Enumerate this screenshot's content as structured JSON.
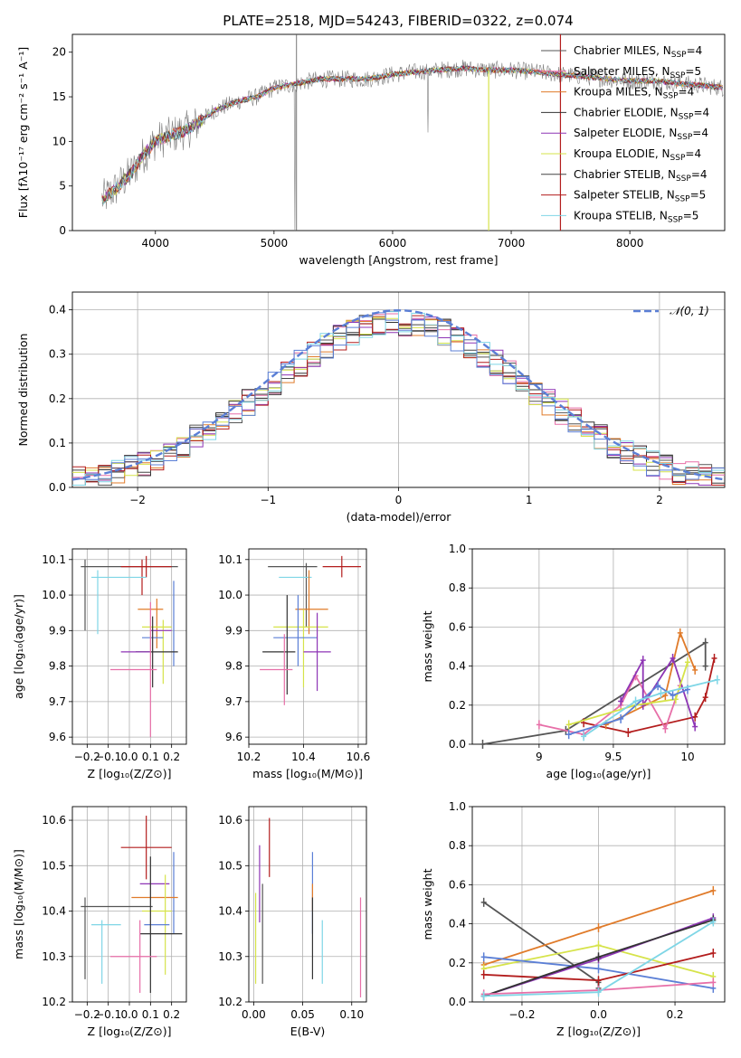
{
  "figure": {
    "title": "PLATE=2518, MJD=54243, FIBERID=0322, z=0.074"
  },
  "chart_data": [
    {
      "id": "spectrum",
      "type": "line",
      "xlabel": "wavelength [Angstrom, rest frame]",
      "ylabel": "Flux [fλ10⁻¹⁷ erg cm⁻² s⁻¹ A⁻¹]",
      "xlim": [
        3300,
        8800
      ],
      "ylim": [
        0,
        22
      ],
      "xticks": [
        4000,
        5000,
        6000,
        7000,
        8000
      ],
      "yticks": [
        0,
        5,
        10,
        15,
        20
      ],
      "grid": false,
      "legend_position": "top-right",
      "continuum": {
        "x": [
          3550,
          3650,
          3800,
          3900,
          4000,
          4100,
          4300,
          4500,
          4700,
          4860,
          5000,
          5200,
          5400,
          5600,
          5800,
          6000,
          6200,
          6400,
          6600,
          6800,
          7000,
          7200,
          7400,
          7600,
          7800,
          8000,
          8200,
          8400,
          8600,
          8790
        ],
        "y": [
          3.5,
          4.5,
          6.5,
          8.5,
          10.0,
          10.5,
          11.5,
          13.5,
          14.5,
          15.0,
          16.0,
          16.5,
          17.0,
          17.0,
          17.0,
          17.5,
          17.8,
          18.0,
          18.2,
          18.0,
          18.0,
          17.8,
          17.5,
          17.3,
          17.0,
          16.8,
          16.8,
          16.5,
          16.3,
          16.0
        ]
      },
      "series": [
        {
          "name": "Chabrier MILES, N$_{SSP}$=4",
          "label_main": "Chabrier MILES, N",
          "label_sub": "SSP",
          "label_tail": "=4",
          "color": "#555555"
        },
        {
          "name": "Salpeter MILES, N$_{SSP}$=5",
          "label_main": "Salpeter MILES, N",
          "label_sub": "SSP",
          "label_tail": "=5",
          "color": "#e76fa8"
        },
        {
          "name": "Kroupa MILES, N$_{SSP}$=4",
          "label_main": "Kroupa MILES, N",
          "label_sub": "SSP",
          "label_tail": "=4",
          "color": "#e07b2a"
        },
        {
          "name": "Chabrier ELODIE, N$_{SSP}$=4",
          "label_main": "Chabrier ELODIE, N",
          "label_sub": "SSP",
          "label_tail": "=4",
          "color": "#333333"
        },
        {
          "name": "Salpeter ELODIE, N$_{SSP}$=4",
          "label_main": "Salpeter ELODIE, N",
          "label_sub": "SSP",
          "label_tail": "=4",
          "color": "#8e35b5"
        },
        {
          "name": "Kroupa ELODIE, N$_{SSP}$=4",
          "label_main": "Kroupa ELODIE, N",
          "label_sub": "SSP",
          "label_tail": "=4",
          "color": "#d6e34a"
        },
        {
          "name": "Chabrier STELIB, N$_{SSP}$=4",
          "label_main": "Chabrier STELIB, N",
          "label_sub": "SSP",
          "label_tail": "=4",
          "color": "#444444"
        },
        {
          "name": "Salpeter STELIB, N$_{SSP}$=5",
          "label_main": "Salpeter STELIB, N",
          "label_sub": "SSP",
          "label_tail": "=5",
          "color": "#b31d1d"
        },
        {
          "name": "Kroupa STELIB, N$_{SSP}$=5",
          "label_main": "Kroupa STELIB, N",
          "label_sub": "SSP",
          "label_tail": "=5",
          "color": "#7fd6e6"
        }
      ]
    },
    {
      "id": "residuals",
      "type": "line",
      "xlabel": "(data-model)/error",
      "ylabel": "Normed distribution",
      "xlim": [
        -2.5,
        2.5
      ],
      "ylim": [
        0,
        0.44
      ],
      "xticks": [
        -2,
        -1,
        0,
        1,
        2
      ],
      "xtick_labels": [
        "−2",
        "−1",
        "0",
        "1",
        "2"
      ],
      "yticks": [
        0.0,
        0.1,
        0.2,
        0.3,
        0.4
      ],
      "grid": true,
      "legend_position": "top-right",
      "reference_curve": {
        "name": "$\\mathcal{N}(0,1)$",
        "label": "𝒩(0, 1)",
        "color": "#5b7fd6",
        "style": "dashed"
      },
      "bin_edges_start": -2.5,
      "bin_width": 0.1,
      "histogram_colors": [
        "#555555",
        "#e76fa8",
        "#e07b2a",
        "#333333",
        "#8e35b5",
        "#d6e34a",
        "#444444",
        "#b31d1d",
        "#7fd6e6",
        "#5b7fd6"
      ]
    },
    {
      "id": "age-vs-Z",
      "type": "scatter",
      "xlabel": "Z [log₁₀(Z/Z⊙)]",
      "ylabel": "age  [log₁₀(age/yr)]",
      "xlim": [
        -0.27,
        0.27
      ],
      "ylim": [
        9.58,
        10.13
      ],
      "xticks": [
        -0.2,
        -0.1,
        0.0,
        0.1,
        0.2
      ],
      "xtick_labels": [
        "−0.2",
        "−0.1",
        "0.0",
        "0.1",
        "0.2"
      ],
      "yticks": [
        9.6,
        9.7,
        9.8,
        9.9,
        10.0,
        10.1
      ],
      "grid": true,
      "points": [
        {
          "x": 0.0,
          "xerr": 0.23,
          "y": 10.08,
          "yerr": 0.0,
          "color": "#555555"
        },
        {
          "x": -0.21,
          "xerr": 0.0,
          "y": 10.0,
          "yerr": 0.1,
          "color": "#555555"
        },
        {
          "x": 0.08,
          "xerr": 0.12,
          "y": 10.08,
          "yerr": 0.03,
          "color": "#b31d1d"
        },
        {
          "x": 0.06,
          "xerr": 0.0,
          "y": 10.05,
          "yerr": 0.05,
          "color": "#b31d1d"
        },
        {
          "x": -0.05,
          "xerr": 0.13,
          "y": 10.05,
          "yerr": 0.0,
          "color": "#7fd6e6"
        },
        {
          "x": -0.15,
          "xerr": 0.0,
          "y": 9.98,
          "yerr": 0.09,
          "color": "#7fd6e6"
        },
        {
          "x": 0.1,
          "xerr": 0.06,
          "y": 9.96,
          "yerr": 0.0,
          "color": "#e07b2a"
        },
        {
          "x": 0.13,
          "xerr": 0.0,
          "y": 9.92,
          "yerr": 0.07,
          "color": "#e07b2a"
        },
        {
          "x": 0.13,
          "xerr": 0.07,
          "y": 9.91,
          "yerr": 0.0,
          "color": "#d6e34a"
        },
        {
          "x": 0.16,
          "xerr": 0.0,
          "y": 9.84,
          "yerr": 0.09,
          "color": "#d6e34a"
        },
        {
          "x": 0.15,
          "xerr": 0.05,
          "y": 9.9,
          "yerr": 0.0,
          "color": "#8e35b5"
        },
        {
          "x": 0.11,
          "xerr": 0.05,
          "y": 9.88,
          "yerr": 0.0,
          "color": "#5b7fd6"
        },
        {
          "x": 0.21,
          "xerr": 0.0,
          "y": 9.92,
          "yerr": 0.12,
          "color": "#5b7fd6"
        },
        {
          "x": 0.13,
          "xerr": 0.1,
          "y": 9.84,
          "yerr": 0.0,
          "color": "#333333"
        },
        {
          "x": 0.11,
          "xerr": 0.0,
          "y": 9.84,
          "yerr": 0.1,
          "color": "#333333"
        },
        {
          "x": 0.03,
          "xerr": 0.07,
          "y": 9.84,
          "yerr": 0.0,
          "color": "#8e35b5"
        },
        {
          "x": 0.02,
          "xerr": 0.11,
          "y": 9.79,
          "yerr": 0.0,
          "color": "#e76fa8"
        },
        {
          "x": 0.1,
          "xerr": 0.0,
          "y": 9.79,
          "yerr": 0.19,
          "color": "#e76fa8"
        }
      ]
    },
    {
      "id": "age-vs-mass",
      "type": "scatter",
      "xlabel": "mass [log₁₀(M/M⊙)]",
      "ylabel": "",
      "xlim": [
        10.2,
        10.63
      ],
      "ylim": [
        9.58,
        10.13
      ],
      "xticks": [
        10.2,
        10.4,
        10.6
      ],
      "yticks": [
        9.6,
        9.7,
        9.8,
        9.9,
        10.0,
        10.1
      ],
      "grid": true,
      "points": [
        {
          "x": 10.54,
          "xerr": 0.07,
          "y": 10.08,
          "yerr": 0.03,
          "color": "#b31d1d"
        },
        {
          "x": 10.36,
          "xerr": 0.09,
          "y": 10.08,
          "yerr": 0.0,
          "color": "#555555"
        },
        {
          "x": 10.41,
          "xerr": 0.0,
          "y": 10.0,
          "yerr": 0.09,
          "color": "#555555"
        },
        {
          "x": 10.37,
          "xerr": 0.06,
          "y": 10.05,
          "yerr": 0.0,
          "color": "#7fd6e6"
        },
        {
          "x": 10.42,
          "xerr": 0.0,
          "y": 9.98,
          "yerr": 0.09,
          "color": "#e07b2a"
        },
        {
          "x": 10.43,
          "xerr": 0.06,
          "y": 9.96,
          "yerr": 0.0,
          "color": "#e07b2a"
        },
        {
          "x": 10.39,
          "xerr": 0.1,
          "y": 9.91,
          "yerr": 0.0,
          "color": "#d6e34a"
        },
        {
          "x": 10.4,
          "xerr": 0.0,
          "y": 9.85,
          "yerr": 0.11,
          "color": "#d6e34a"
        },
        {
          "x": 10.37,
          "xerr": 0.08,
          "y": 9.88,
          "yerr": 0.0,
          "color": "#5b7fd6"
        },
        {
          "x": 10.38,
          "xerr": 0.0,
          "y": 9.9,
          "yerr": 0.1,
          "color": "#5b7fd6"
        },
        {
          "x": 10.34,
          "xerr": 0.0,
          "y": 9.86,
          "yerr": 0.14,
          "color": "#333333"
        },
        {
          "x": 10.31,
          "xerr": 0.06,
          "y": 9.84,
          "yerr": 0.0,
          "color": "#333333"
        },
        {
          "x": 10.45,
          "xerr": 0.05,
          "y": 9.84,
          "yerr": 0.0,
          "color": "#8e35b5"
        },
        {
          "x": 10.45,
          "xerr": 0.0,
          "y": 9.84,
          "yerr": 0.11,
          "color": "#8e35b5"
        },
        {
          "x": 10.3,
          "xerr": 0.06,
          "y": 9.79,
          "yerr": 0.0,
          "color": "#e76fa8"
        },
        {
          "x": 10.33,
          "xerr": 0.0,
          "y": 9.79,
          "yerr": 0.1,
          "color": "#e76fa8"
        }
      ]
    },
    {
      "id": "weight-vs-age",
      "type": "line",
      "xlabel": "age  [log₁₀(age/yr)]",
      "ylabel": "mass weight",
      "xlim": [
        8.55,
        10.25
      ],
      "ylim": [
        0,
        1
      ],
      "xticks": [
        9.0,
        9.5,
        10.0
      ],
      "yticks": [
        0.0,
        0.2,
        0.4,
        0.6,
        0.8,
        1.0
      ],
      "grid": true,
      "series": [
        {
          "color": "#555555",
          "x": [
            8.62,
            9.18,
            10.12,
            10.12
          ],
          "y": [
            0.0,
            0.07,
            0.52,
            0.4
          ]
        },
        {
          "color": "#b31d1d",
          "x": [
            9.3,
            9.6,
            10.05,
            10.12,
            10.18
          ],
          "y": [
            0.11,
            0.06,
            0.14,
            0.24,
            0.44
          ]
        },
        {
          "color": "#e07b2a",
          "x": [
            9.45,
            9.85,
            9.95,
            10.05
          ],
          "y": [
            0.1,
            0.25,
            0.57,
            0.38
          ]
        },
        {
          "color": "#e76fa8",
          "x": [
            9.0,
            9.3,
            9.55,
            9.65,
            9.85,
            9.95
          ],
          "y": [
            0.1,
            0.05,
            0.2,
            0.35,
            0.08,
            0.3
          ]
        },
        {
          "color": "#8e35b5",
          "x": [
            9.55,
            9.7,
            9.7,
            9.9,
            10.05
          ],
          "y": [
            0.22,
            0.43,
            0.2,
            0.44,
            0.09
          ]
        },
        {
          "color": "#d6e34a",
          "x": [
            9.2,
            9.65,
            9.92,
            10.0
          ],
          "y": [
            0.1,
            0.2,
            0.23,
            0.42
          ]
        },
        {
          "color": "#5b7fd6",
          "x": [
            9.2,
            9.55,
            9.8,
            9.9,
            10.0
          ],
          "y": [
            0.05,
            0.13,
            0.3,
            0.25,
            0.28
          ]
        },
        {
          "color": "#7fd6e6",
          "x": [
            9.3,
            9.65,
            9.82,
            10.2
          ],
          "y": [
            0.04,
            0.22,
            0.26,
            0.33
          ]
        }
      ]
    },
    {
      "id": "mass-vs-Z",
      "type": "scatter",
      "xlabel": "Z [log₁₀(Z/Z⊙)]",
      "ylabel": "mass [log₁₀(M/M⊙)]",
      "xlim": [
        -0.27,
        0.27
      ],
      "ylim": [
        10.2,
        10.63
      ],
      "xticks": [
        -0.2,
        -0.1,
        0.0,
        0.1,
        0.2
      ],
      "xtick_labels": [
        "−0.2",
        "−0.1",
        "0.0",
        "0.1",
        "0.2"
      ],
      "yticks": [
        10.2,
        10.3,
        10.4,
        10.5,
        10.6
      ],
      "grid": true,
      "points": [
        {
          "x": 0.08,
          "xerr": 0.12,
          "y": 10.54,
          "yerr": 0.07,
          "color": "#b31d1d"
        },
        {
          "x": 0.21,
          "xerr": 0.0,
          "y": 10.44,
          "yerr": 0.09,
          "color": "#5b7fd6"
        },
        {
          "x": 0.12,
          "xerr": 0.07,
          "y": 10.46,
          "yerr": 0.0,
          "color": "#8e35b5"
        },
        {
          "x": 0.12,
          "xerr": 0.11,
          "y": 10.43,
          "yerr": 0.0,
          "color": "#e07b2a"
        },
        {
          "x": 0.17,
          "xerr": 0.0,
          "y": 10.37,
          "yerr": 0.11,
          "color": "#d6e34a"
        },
        {
          "x": -0.06,
          "xerr": 0.17,
          "y": 10.41,
          "yerr": 0.0,
          "color": "#555555"
        },
        {
          "x": -0.21,
          "xerr": 0.0,
          "y": 10.34,
          "yerr": 0.09,
          "color": "#555555"
        },
        {
          "x": 0.13,
          "xerr": 0.07,
          "y": 10.4,
          "yerr": 0.0,
          "color": "#d6e34a"
        },
        {
          "x": -0.11,
          "xerr": 0.07,
          "y": 10.37,
          "yerr": 0.0,
          "color": "#7fd6e6"
        },
        {
          "x": -0.13,
          "xerr": 0.0,
          "y": 10.31,
          "yerr": 0.07,
          "color": "#7fd6e6"
        },
        {
          "x": 0.13,
          "xerr": 0.06,
          "y": 10.37,
          "yerr": 0.0,
          "color": "#5b7fd6"
        },
        {
          "x": 0.1,
          "xerr": 0.0,
          "y": 10.37,
          "yerr": 0.15,
          "color": "#333333"
        },
        {
          "x": 0.15,
          "xerr": 0.1,
          "y": 10.35,
          "yerr": 0.0,
          "color": "#333333"
        },
        {
          "x": 0.05,
          "xerr": 0.0,
          "y": 10.3,
          "yerr": 0.08,
          "color": "#e76fa8"
        },
        {
          "x": 0.02,
          "xerr": 0.11,
          "y": 10.3,
          "yerr": 0.0,
          "color": "#e76fa8"
        }
      ]
    },
    {
      "id": "mass-vs-ebv",
      "type": "scatter",
      "xlabel": "E(B-V)",
      "ylabel": "",
      "xlim": [
        -0.005,
        0.115
      ],
      "ylim": [
        10.2,
        10.63
      ],
      "xticks": [
        0.0,
        0.05,
        0.1
      ],
      "xtick_labels": [
        "0.00",
        "0.05",
        "0.10"
      ],
      "yticks": [
        10.2,
        10.3,
        10.4,
        10.5,
        10.6
      ],
      "grid": true,
      "points": [
        {
          "x": 0.016,
          "xerr": 0.0,
          "y": 10.54,
          "yerr": 0.065,
          "color": "#b31d1d"
        },
        {
          "x": 0.006,
          "xerr": 0.0,
          "y": 10.46,
          "yerr": 0.085,
          "color": "#8e35b5"
        },
        {
          "x": 0.009,
          "xerr": 0.0,
          "y": 10.35,
          "yerr": 0.11,
          "color": "#555555"
        },
        {
          "x": 0.06,
          "xerr": 0.0,
          "y": 10.44,
          "yerr": 0.09,
          "color": "#5b7fd6"
        },
        {
          "x": 0.06,
          "xerr": 0.0,
          "y": 10.43,
          "yerr": 0.03,
          "color": "#e07b2a"
        },
        {
          "x": 0.06,
          "xerr": 0.0,
          "y": 10.34,
          "yerr": 0.09,
          "color": "#333333"
        },
        {
          "x": 0.07,
          "xerr": 0.0,
          "y": 10.31,
          "yerr": 0.07,
          "color": "#7fd6e6"
        },
        {
          "x": 0.002,
          "xerr": 0.0,
          "y": 10.34,
          "yerr": 0.1,
          "color": "#d6e34a"
        },
        {
          "x": 0.109,
          "xerr": 0.0,
          "y": 10.32,
          "yerr": 0.11,
          "color": "#e76fa8"
        }
      ]
    },
    {
      "id": "weight-vs-Z",
      "type": "line",
      "xlabel": "Z [log₁₀(Z/Z⊙)]",
      "ylabel": "mass weight",
      "xlim": [
        -0.33,
        0.33
      ],
      "ylim": [
        0,
        1
      ],
      "xticks": [
        -0.2,
        0.0,
        0.2
      ],
      "xtick_labels": [
        "−0.2",
        "0.0",
        "0.2"
      ],
      "yticks": [
        0.0,
        0.2,
        0.4,
        0.6,
        0.8,
        1.0
      ],
      "grid": true,
      "series": [
        {
          "color": "#555555",
          "x": [
            -0.3,
            0.0,
            0.0
          ],
          "y": [
            0.51,
            0.1,
            0.07
          ]
        },
        {
          "color": "#e07b2a",
          "x": [
            -0.3,
            0.0,
            0.3
          ],
          "y": [
            0.19,
            0.38,
            0.57
          ]
        },
        {
          "color": "#d6e34a",
          "x": [
            -0.3,
            0.0,
            0.3
          ],
          "y": [
            0.17,
            0.29,
            0.13
          ]
        },
        {
          "color": "#5b7fd6",
          "x": [
            -0.3,
            0.0,
            0.3
          ],
          "y": [
            0.23,
            0.17,
            0.07
          ]
        },
        {
          "color": "#b31d1d",
          "x": [
            -0.3,
            0.0,
            0.3
          ],
          "y": [
            0.14,
            0.11,
            0.25
          ]
        },
        {
          "color": "#8e35b5",
          "x": [
            -0.3,
            0.0,
            0.3
          ],
          "y": [
            0.03,
            0.22,
            0.43
          ]
        },
        {
          "color": "#333333",
          "x": [
            -0.3,
            0.0,
            0.3
          ],
          "y": [
            0.03,
            0.23,
            0.42
          ]
        },
        {
          "color": "#e76fa8",
          "x": [
            -0.3,
            0.0,
            0.3
          ],
          "y": [
            0.04,
            0.06,
            0.1
          ]
        },
        {
          "color": "#7fd6e6",
          "x": [
            -0.3,
            0.0,
            0.3
          ],
          "y": [
            0.03,
            0.05,
            0.41
          ]
        }
      ]
    }
  ]
}
